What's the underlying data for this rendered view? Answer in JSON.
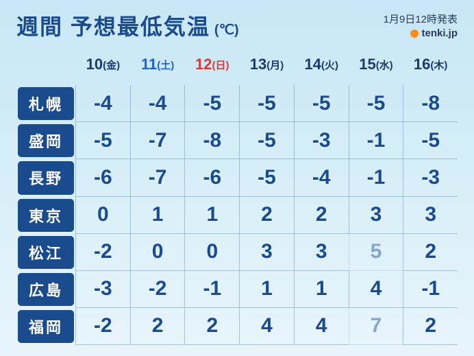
{
  "header": {
    "title": "週間 予想最低気温",
    "unit": "(℃)",
    "issued": "1月9日12時発表",
    "logo": "tenki.jp"
  },
  "colors": {
    "weekday": "#1a3b6c",
    "saturday": "#1e62d0",
    "sunday": "#d93a3a",
    "value": "#1a4b8c",
    "city_bg": "#1a4b8c"
  },
  "days": [
    {
      "day": "10",
      "dow": "(金)",
      "type": "weekday"
    },
    {
      "day": "11",
      "dow": "(土)",
      "type": "saturday"
    },
    {
      "day": "12",
      "dow": "(日)",
      "type": "sunday"
    },
    {
      "day": "13",
      "dow": "(月)",
      "type": "weekday"
    },
    {
      "day": "14",
      "dow": "(火)",
      "type": "weekday"
    },
    {
      "day": "15",
      "dow": "(水)",
      "type": "weekday"
    },
    {
      "day": "16",
      "dow": "(木)",
      "type": "weekday"
    }
  ],
  "cities": [
    "札幌",
    "盛岡",
    "長野",
    "東京",
    "松江",
    "広島",
    "福岡"
  ],
  "values": [
    [
      {
        "v": "-4"
      },
      {
        "v": "-4"
      },
      {
        "v": "-5"
      },
      {
        "v": "-5"
      },
      {
        "v": "-5"
      },
      {
        "v": "-5"
      },
      {
        "v": "-8"
      }
    ],
    [
      {
        "v": "-5"
      },
      {
        "v": "-7"
      },
      {
        "v": "-8"
      },
      {
        "v": "-5"
      },
      {
        "v": "-3"
      },
      {
        "v": "-1"
      },
      {
        "v": "-5"
      }
    ],
    [
      {
        "v": "-6"
      },
      {
        "v": "-7"
      },
      {
        "v": "-6"
      },
      {
        "v": "-5"
      },
      {
        "v": "-4"
      },
      {
        "v": "-1"
      },
      {
        "v": "-3"
      }
    ],
    [
      {
        "v": "0"
      },
      {
        "v": "1"
      },
      {
        "v": "1"
      },
      {
        "v": "2"
      },
      {
        "v": "2"
      },
      {
        "v": "3"
      },
      {
        "v": "3"
      }
    ],
    [
      {
        "v": "-2"
      },
      {
        "v": "0"
      },
      {
        "v": "0"
      },
      {
        "v": "3"
      },
      {
        "v": "3"
      },
      {
        "v": "5",
        "dim": true
      },
      {
        "v": "2"
      }
    ],
    [
      {
        "v": "-3"
      },
      {
        "v": "-2"
      },
      {
        "v": "-1"
      },
      {
        "v": "1"
      },
      {
        "v": "1"
      },
      {
        "v": "4"
      },
      {
        "v": "-1"
      }
    ],
    [
      {
        "v": "-2"
      },
      {
        "v": "2"
      },
      {
        "v": "2"
      },
      {
        "v": "4"
      },
      {
        "v": "4"
      },
      {
        "v": "7",
        "dim": true
      },
      {
        "v": "2"
      }
    ]
  ]
}
